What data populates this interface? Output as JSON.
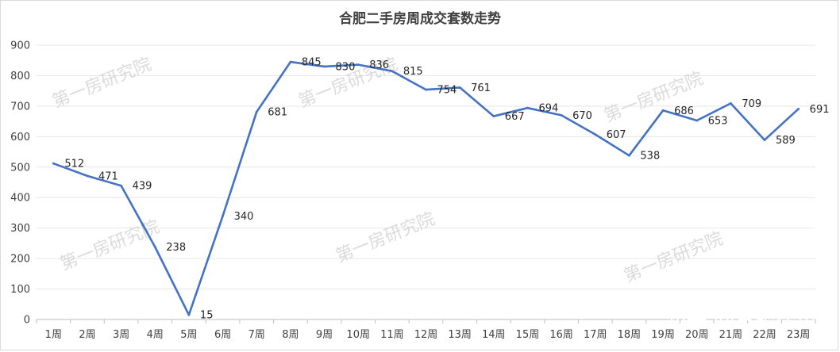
{
  "chart_data": {
    "type": "line",
    "title": "合肥二手房周成交套数走势",
    "categories": [
      "1周",
      "2周",
      "3周",
      "4周",
      "5周",
      "6周",
      "7周",
      "8周",
      "9周",
      "10周",
      "11周",
      "12周",
      "13周",
      "14周",
      "15周",
      "16周",
      "17周",
      "18周",
      "19周",
      "20周",
      "21周",
      "22周",
      "23周"
    ],
    "series": [
      {
        "values": [
          512,
          471,
          439,
          238,
          15,
          340,
          681,
          845,
          830,
          836,
          815,
          754,
          761,
          667,
          694,
          670,
          607,
          538,
          686,
          653,
          709,
          589,
          691
        ]
      }
    ],
    "ylim": [
      0,
      900
    ],
    "yticks": [
      0,
      100,
      200,
      300,
      400,
      500,
      600,
      700,
      800,
      900
    ],
    "grid": true,
    "legend": "none",
    "color": "#4472c4"
  },
  "watermarks": [
    "第一房研究院",
    "第一房研究院",
    "第一房研究院",
    "第一房研究院",
    "第一房研究院",
    "第一房研究院"
  ],
  "brand_watermark": "知乎 @合肥楼市"
}
